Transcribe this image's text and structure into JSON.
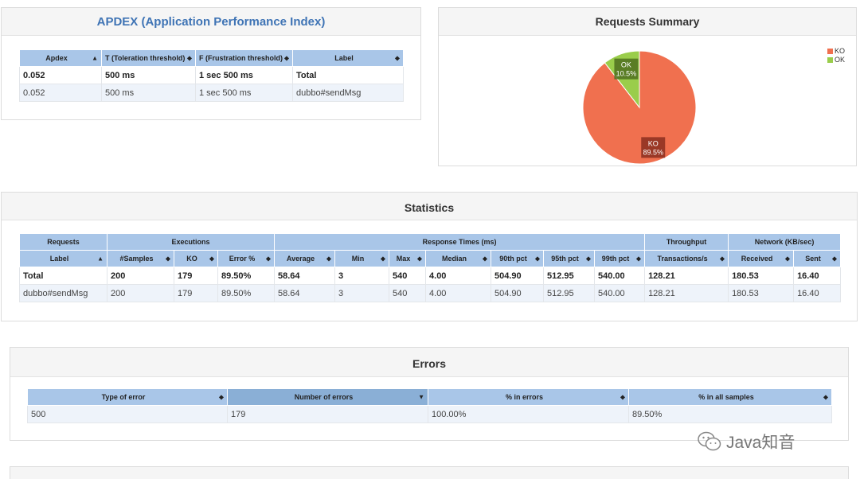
{
  "apdex": {
    "title": "APDEX (Application Performance Index)",
    "headers": [
      "Apdex",
      "T (Toleration threshold)",
      "F (Frustration threshold)",
      "Label"
    ],
    "rows": [
      [
        "0.052",
        "500 ms",
        "1 sec 500 ms",
        "Total"
      ],
      [
        "0.052",
        "500 ms",
        "1 sec 500 ms",
        "dubbo#sendMsg"
      ]
    ]
  },
  "summary": {
    "title": "Requests Summary",
    "legend": [
      {
        "label": "KO",
        "color": "#f0704f"
      },
      {
        "label": "OK",
        "color": "#9acd4b"
      }
    ]
  },
  "chart_data": {
    "type": "pie",
    "labels": [
      "KO",
      "OK"
    ],
    "values": [
      89.5,
      10.5
    ],
    "data_labels": [
      "89.5%",
      "10.5%"
    ],
    "colors": [
      "#f0704f",
      "#9acd4b"
    ],
    "legend": "top-right"
  },
  "statistics": {
    "title": "Statistics",
    "groups": [
      "Requests",
      "Executions",
      "Response Times (ms)",
      "Throughput",
      "Network (KB/sec)"
    ],
    "headers": [
      "Label",
      "#Samples",
      "KO",
      "Error %",
      "Average",
      "Min",
      "Max",
      "Median",
      "90th pct",
      "95th pct",
      "99th pct",
      "Transactions/s",
      "Received",
      "Sent"
    ],
    "rows": [
      [
        "Total",
        "200",
        "179",
        "89.50%",
        "58.64",
        "3",
        "540",
        "4.00",
        "504.90",
        "512.95",
        "540.00",
        "128.21",
        "180.53",
        "16.40"
      ],
      [
        "dubbo#sendMsg",
        "200",
        "179",
        "89.50%",
        "58.64",
        "3",
        "540",
        "4.00",
        "504.90",
        "512.95",
        "540.00",
        "128.21",
        "180.53",
        "16.40"
      ]
    ]
  },
  "errors": {
    "title": "Errors",
    "headers": [
      "Type of error",
      "Number of errors",
      "% in errors",
      "% in all samples"
    ],
    "rows": [
      [
        "500",
        "179",
        "100.00%",
        "89.50%"
      ]
    ]
  },
  "watermark": {
    "text": "Java知音",
    "icon": "wechat-icon"
  }
}
